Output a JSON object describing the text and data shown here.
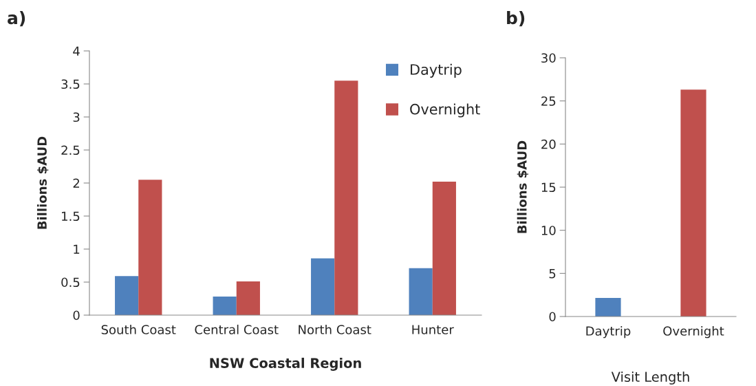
{
  "chart_data": [
    {
      "type": "bar",
      "xlabel": "NSW Coastal Region",
      "ylabel": "Billions $AUD",
      "annotations": [
        "a)"
      ],
      "categories": [
        "South Coast",
        "Central Coast",
        "North Coast",
        "Hunter"
      ],
      "series": [
        {
          "name": "Daytrip",
          "color": "#4f81bd",
          "values": [
            0.59,
            0.28,
            0.86,
            0.71
          ]
        },
        {
          "name": "Overnight",
          "color": "#c0504d",
          "values": [
            2.05,
            0.51,
            3.55,
            2.02
          ]
        }
      ],
      "ylim": [
        0,
        4
      ],
      "yticks": [
        0,
        0.5,
        1,
        1.5,
        2,
        2.5,
        3,
        3.5,
        4
      ],
      "legend": "top right",
      "grid": false
    },
    {
      "type": "bar",
      "xlabel": "Visit Length",
      "ylabel": "Billions $AUD",
      "annotations": [
        "b)"
      ],
      "categories": [
        "Daytrip",
        "Overnight"
      ],
      "values": [
        2.15,
        26.3
      ],
      "colors": [
        "#4f81bd",
        "#c0504d"
      ],
      "ylim": [
        0,
        30
      ],
      "yticks": [
        0,
        5,
        10,
        15,
        20,
        25,
        30
      ],
      "grid": false
    }
  ]
}
